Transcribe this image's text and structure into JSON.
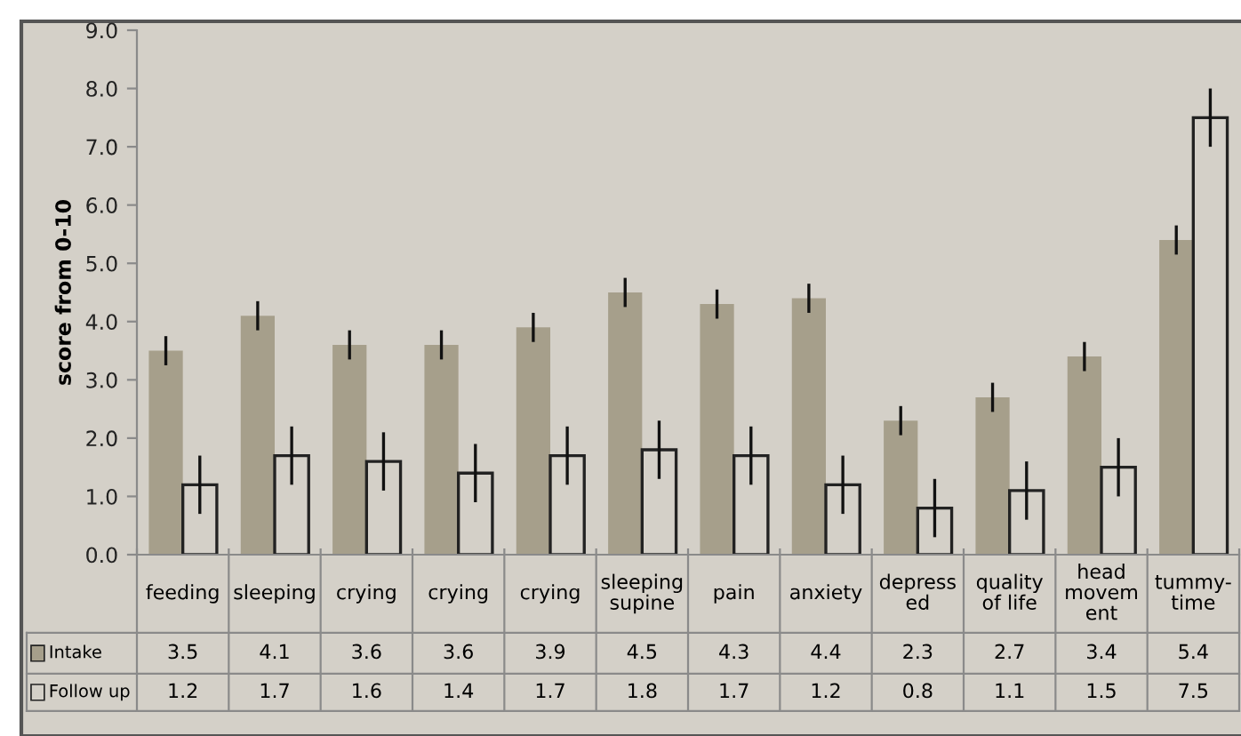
{
  "chart_data": {
    "type": "bar",
    "ylabel": "score from 0-10",
    "categories": [
      "feeding",
      "sleeping",
      "crying",
      "crying",
      "crying",
      "sleeping\nsupine",
      "pain",
      "anxiety",
      "depress\ned",
      "quality\nof life",
      "head\nmovem\nent",
      "tummy-\ntime"
    ],
    "series": [
      {
        "name": "Intake",
        "color": "#a69f8b",
        "values": [
          3.5,
          4.1,
          3.6,
          3.6,
          3.9,
          4.5,
          4.3,
          4.4,
          2.3,
          2.7,
          3.4,
          5.4
        ],
        "errors": [
          0.25,
          0.25,
          0.25,
          0.25,
          0.25,
          0.25,
          0.25,
          0.25,
          0.25,
          0.25,
          0.25,
          0.25
        ]
      },
      {
        "name": "Follow up",
        "color": "#d4d0c8",
        "values": [
          1.2,
          1.7,
          1.6,
          1.4,
          1.7,
          1.8,
          1.7,
          1.2,
          0.8,
          1.1,
          1.5,
          7.5
        ],
        "errors": [
          0.5,
          0.5,
          0.5,
          0.5,
          0.5,
          0.5,
          0.5,
          0.5,
          0.5,
          0.5,
          0.5,
          0.5
        ]
      }
    ],
    "ylim": [
      0,
      9
    ],
    "yticks": [
      {
        "value": 0,
        "label": "0.0"
      },
      {
        "value": 1,
        "label": "1.0"
      },
      {
        "value": 2,
        "label": "2.0"
      },
      {
        "value": 3,
        "label": "3.0"
      },
      {
        "value": 4,
        "label": "4.0"
      },
      {
        "value": 5,
        "label": "5.0"
      },
      {
        "value": 6,
        "label": "6.0"
      },
      {
        "value": 7,
        "label": "7.0"
      },
      {
        "value": 8,
        "label": "8.0"
      },
      {
        "value": 9,
        "label": "9.0"
      }
    ],
    "data_labels": true,
    "legend": "bottom left"
  }
}
